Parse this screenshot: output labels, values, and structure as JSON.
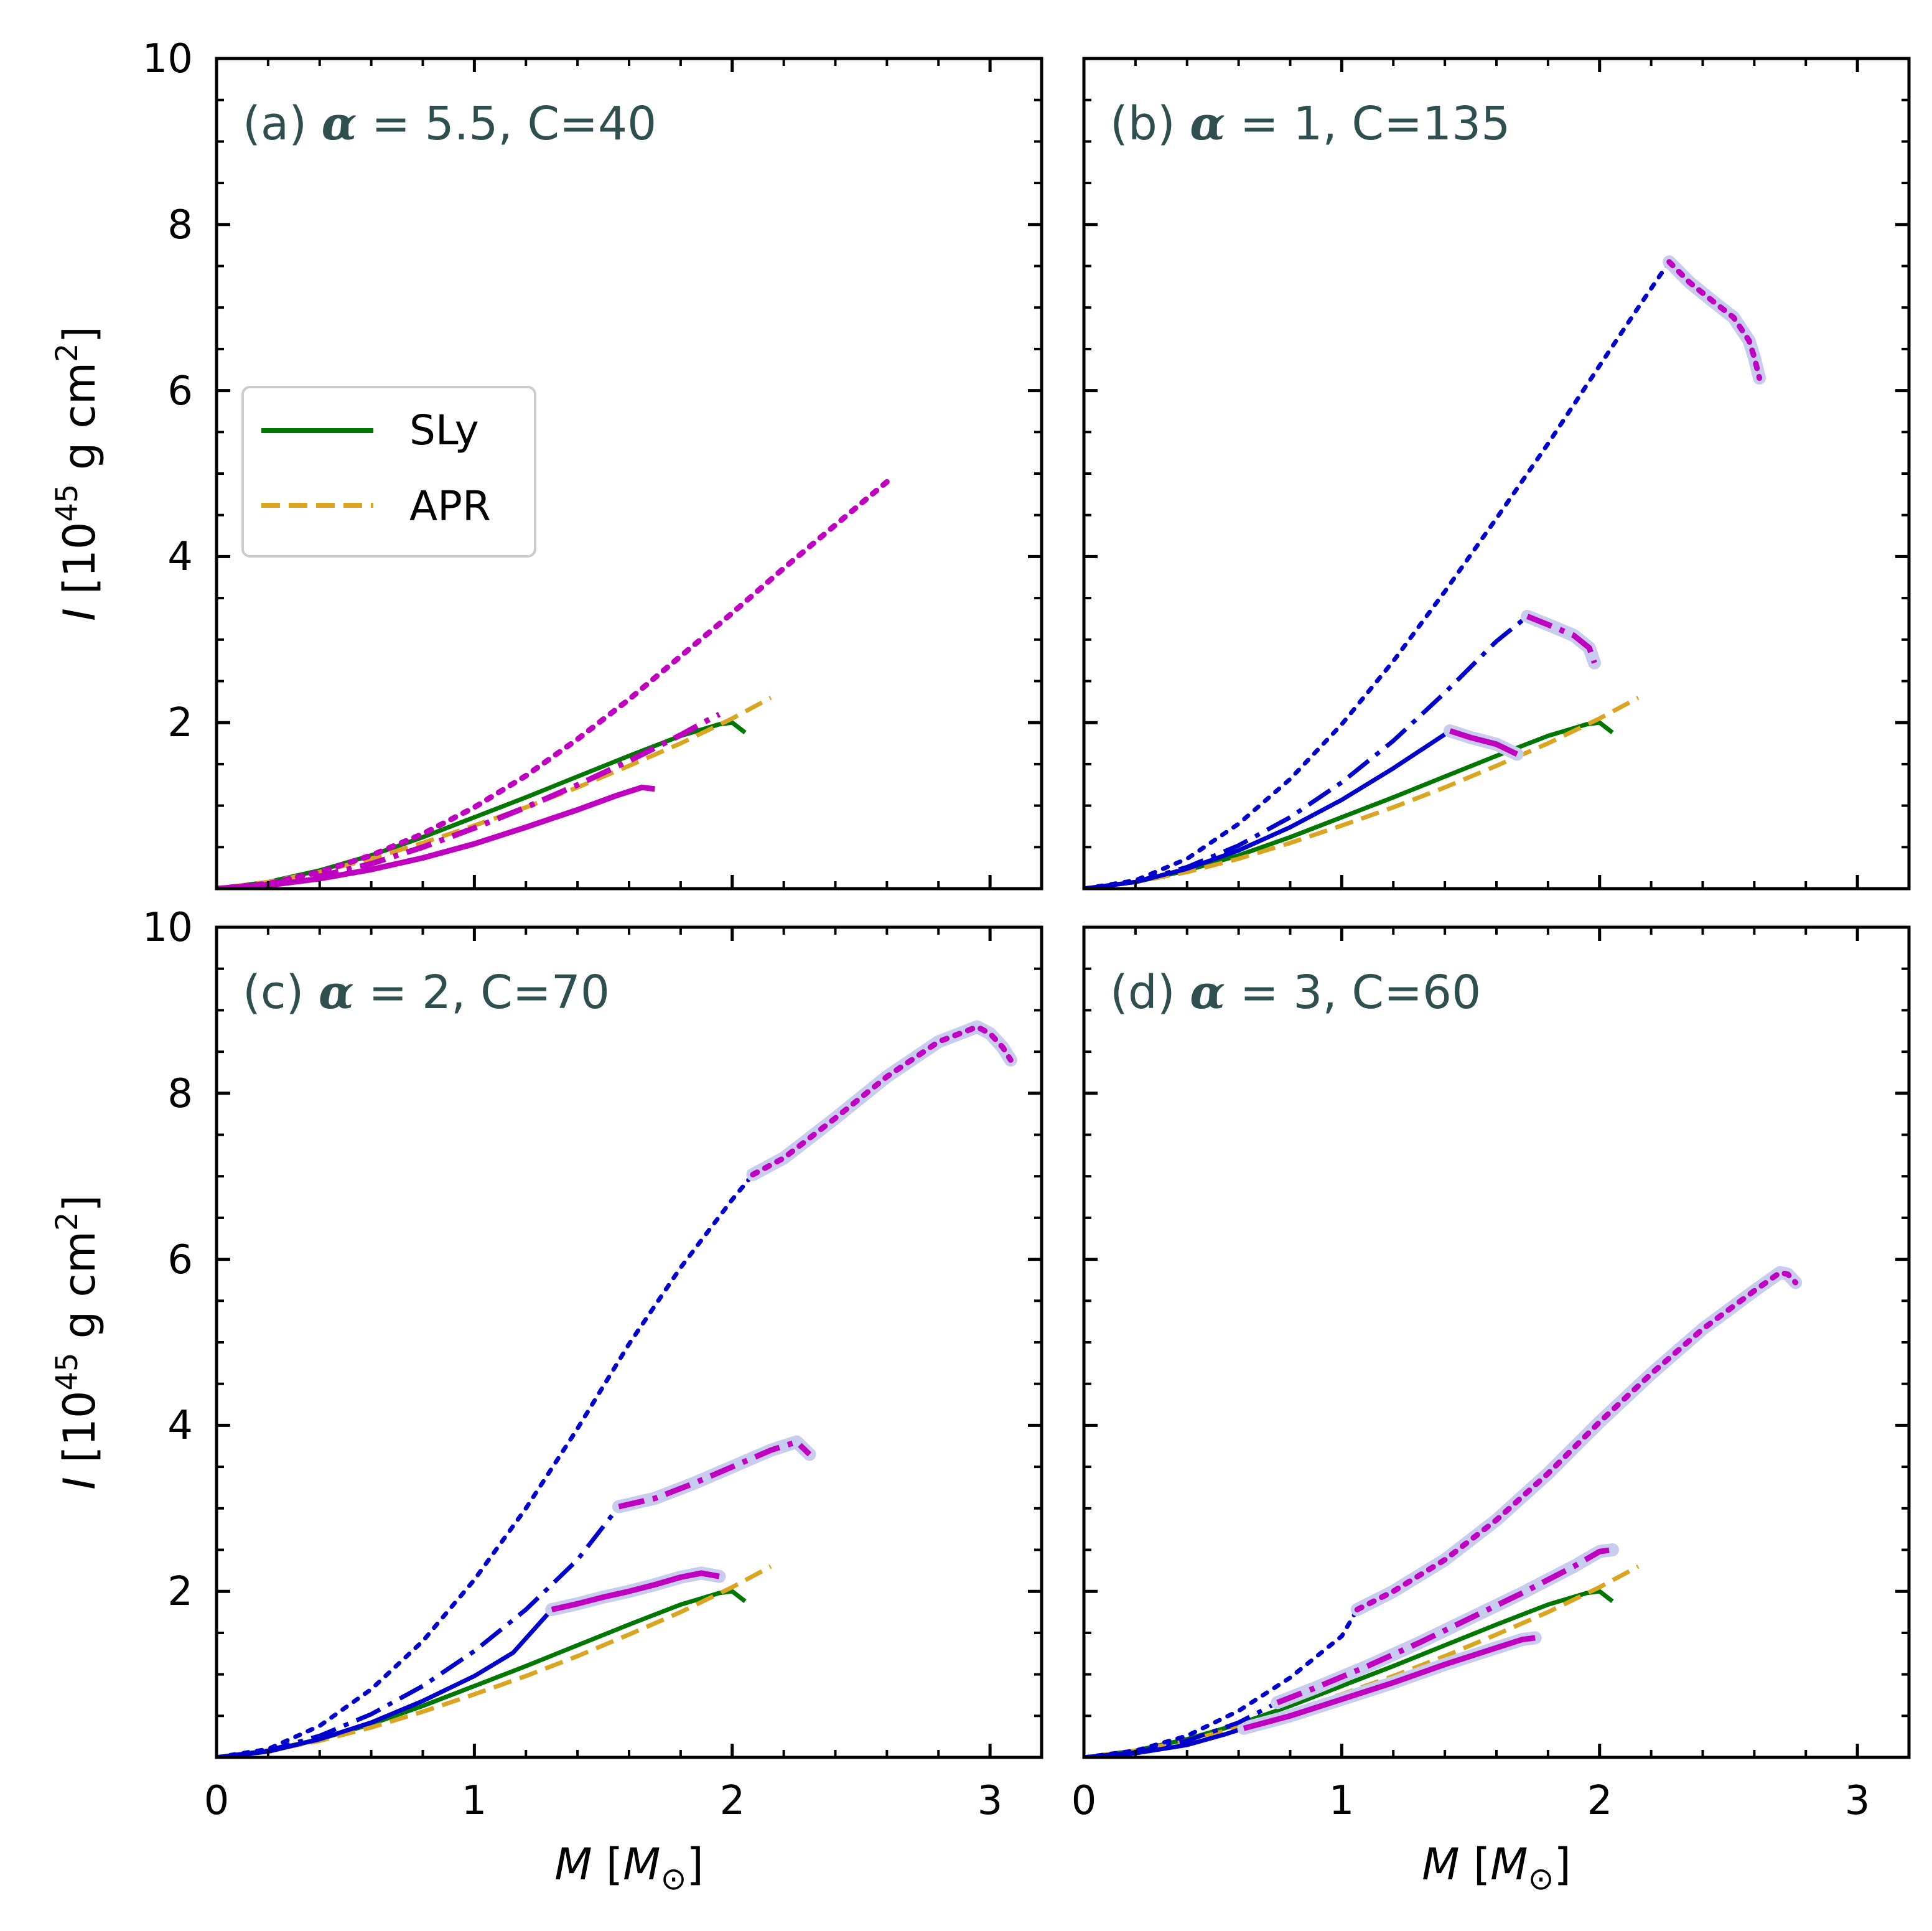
{
  "colors": {
    "SLy": "#007700",
    "APR": "#daa520",
    "hadronic": "#0000cd",
    "hybrid": "#c000c0",
    "halo": "#c8cdf0",
    "title": "#2f4f4f"
  },
  "legend": [
    {
      "label": "SLy",
      "style": "solid",
      "color": "#007700"
    },
    {
      "label": "APR",
      "style": "dashed",
      "color": "#daa520"
    }
  ],
  "chart_data": [
    {
      "id": "a",
      "type": "line",
      "title": {
        "prefix": "(a) ",
        "greek": "α",
        "suffix": " = 5.5, C=40"
      },
      "xlabel": "M",
      "xunit": "M",
      "xunit_sub": "⊙",
      "ylabel": "I",
      "yunit": "10",
      "yunit_exp": "45",
      "yunit_rest": " g cm",
      "yunit_exp2": "2",
      "xlim": [
        0,
        3.2
      ],
      "ylim": [
        0,
        10
      ],
      "xticks": [
        0,
        1,
        2,
        3
      ],
      "yticks": [
        2,
        4,
        6,
        8,
        10
      ],
      "series": [
        {
          "name": "SLy",
          "color": "SLy",
          "style": "solid",
          "width": 7,
          "x": [
            0.05,
            0.2,
            0.4,
            0.6,
            0.8,
            1.0,
            1.2,
            1.4,
            1.6,
            1.8,
            1.95,
            2.0,
            2.05
          ],
          "y": [
            0.02,
            0.08,
            0.22,
            0.4,
            0.62,
            0.86,
            1.1,
            1.35,
            1.6,
            1.84,
            1.98,
            2.0,
            1.88
          ]
        },
        {
          "name": "APR",
          "color": "APR",
          "style": "dashed",
          "width": 7,
          "x": [
            0.05,
            0.2,
            0.4,
            0.6,
            0.8,
            1.0,
            1.2,
            1.4,
            1.6,
            1.8,
            2.0,
            2.15
          ],
          "y": [
            0.02,
            0.08,
            0.2,
            0.36,
            0.55,
            0.76,
            0.98,
            1.22,
            1.48,
            1.75,
            2.05,
            2.3
          ]
        },
        {
          "name": "hybrid-solid",
          "color": "hybrid",
          "style": "solid",
          "width": 9,
          "x": [
            0,
            0.2,
            0.4,
            0.6,
            0.8,
            1.0,
            1.2,
            1.4,
            1.55,
            1.65,
            1.7
          ],
          "y": [
            0,
            0.04,
            0.12,
            0.23,
            0.37,
            0.54,
            0.74,
            0.95,
            1.12,
            1.22,
            1.2
          ]
        },
        {
          "name": "hybrid-dashdot",
          "color": "hybrid",
          "style": "dashdot",
          "width": 9,
          "x": [
            0,
            0.2,
            0.4,
            0.6,
            0.8,
            1.0,
            1.2,
            1.4,
            1.6,
            1.8,
            1.9,
            1.95
          ],
          "y": [
            0,
            0.05,
            0.15,
            0.3,
            0.5,
            0.73,
            0.98,
            1.25,
            1.54,
            1.85,
            2.02,
            2.1
          ]
        },
        {
          "name": "hybrid-dotted",
          "color": "hybrid",
          "style": "dotted",
          "width": 9,
          "x": [
            0,
            0.2,
            0.4,
            0.6,
            0.8,
            1.0,
            1.2,
            1.4,
            1.6,
            1.8,
            2.0,
            2.2,
            2.4,
            2.6
          ],
          "y": [
            0,
            0.06,
            0.2,
            0.4,
            0.66,
            0.98,
            1.36,
            1.8,
            2.28,
            2.8,
            3.32,
            3.86,
            4.38,
            4.9
          ]
        }
      ]
    },
    {
      "id": "b",
      "type": "line",
      "title": {
        "prefix": "(b) ",
        "greek": "α",
        "suffix": " = 1, C=135"
      },
      "xlabel": "M",
      "xunit": "M",
      "xunit_sub": "⊙",
      "ylabel": "I",
      "yunit": "10",
      "yunit_exp": "45",
      "yunit_rest": " g cm",
      "yunit_exp2": "2",
      "xlim": [
        0,
        3.2
      ],
      "ylim": [
        0,
        10
      ],
      "xticks": [
        0,
        1,
        2,
        3
      ],
      "yticks": [
        2,
        4,
        6,
        8,
        10
      ],
      "series": [
        {
          "name": "SLy",
          "color": "SLy",
          "style": "solid",
          "width": 7,
          "x": [
            0.05,
            0.2,
            0.4,
            0.6,
            0.8,
            1.0,
            1.2,
            1.4,
            1.6,
            1.8,
            1.95,
            2.0,
            2.05
          ],
          "y": [
            0.02,
            0.08,
            0.22,
            0.4,
            0.62,
            0.86,
            1.1,
            1.35,
            1.6,
            1.84,
            1.98,
            2.0,
            1.88
          ]
        },
        {
          "name": "APR",
          "color": "APR",
          "style": "dashed",
          "width": 7,
          "x": [
            0.05,
            0.2,
            0.4,
            0.6,
            0.8,
            1.0,
            1.2,
            1.4,
            1.6,
            1.8,
            2.0,
            2.15
          ],
          "y": [
            0.02,
            0.08,
            0.2,
            0.36,
            0.55,
            0.76,
            0.98,
            1.22,
            1.48,
            1.75,
            2.05,
            2.3
          ]
        },
        {
          "name": "hadronic-solid",
          "color": "hadronic",
          "style": "solid",
          "width": 7,
          "x": [
            0,
            0.2,
            0.4,
            0.6,
            0.8,
            1.0,
            1.2,
            1.42
          ],
          "y": [
            0,
            0.08,
            0.24,
            0.46,
            0.74,
            1.07,
            1.45,
            1.9
          ]
        },
        {
          "name": "hybrid-solid",
          "color": "hybrid",
          "style": "solid",
          "width": 9,
          "halo": true,
          "x": [
            1.42,
            1.5,
            1.6,
            1.68
          ],
          "y": [
            1.9,
            1.82,
            1.74,
            1.62
          ]
        },
        {
          "name": "hadronic-dashdot",
          "color": "hadronic",
          "style": "dashdot",
          "width": 7,
          "x": [
            0,
            0.2,
            0.4,
            0.6,
            0.8,
            1.0,
            1.2,
            1.4,
            1.6,
            1.72
          ],
          "y": [
            0,
            0.08,
            0.26,
            0.52,
            0.86,
            1.28,
            1.78,
            2.36,
            2.98,
            3.28
          ]
        },
        {
          "name": "hybrid-dashdot",
          "color": "hybrid",
          "style": "dashdot",
          "width": 9,
          "halo": true,
          "x": [
            1.72,
            1.8,
            1.9,
            1.96,
            1.98
          ],
          "y": [
            3.28,
            3.18,
            3.05,
            2.9,
            2.72
          ]
        },
        {
          "name": "hadronic-dotted",
          "color": "hadronic",
          "style": "dotted",
          "width": 7,
          "x": [
            0,
            0.2,
            0.4,
            0.6,
            0.8,
            1.0,
            1.2,
            1.4,
            1.6,
            1.8,
            2.0,
            2.15,
            2.27
          ],
          "y": [
            0,
            0.1,
            0.36,
            0.78,
            1.32,
            1.98,
            2.74,
            3.58,
            4.46,
            5.36,
            6.3,
            7.0,
            7.55
          ]
        },
        {
          "name": "hybrid-dotted",
          "color": "hybrid",
          "style": "dotted",
          "width": 9,
          "halo": true,
          "x": [
            2.27,
            2.35,
            2.45,
            2.52,
            2.58,
            2.6,
            2.62
          ],
          "y": [
            7.55,
            7.3,
            7.05,
            6.88,
            6.6,
            6.4,
            6.15
          ]
        }
      ]
    },
    {
      "id": "c",
      "type": "line",
      "title": {
        "prefix": "(c) ",
        "greek": "α",
        "suffix": " = 2, C=70"
      },
      "xlabel": "M",
      "xunit": "M",
      "xunit_sub": "⊙",
      "ylabel": "I",
      "yunit": "10",
      "yunit_exp": "45",
      "yunit_rest": " g cm",
      "yunit_exp2": "2",
      "xlim": [
        0,
        3.2
      ],
      "ylim": [
        0,
        10
      ],
      "xticks": [
        0,
        1,
        2,
        3
      ],
      "yticks": [
        2,
        4,
        6,
        8,
        10
      ],
      "series": [
        {
          "name": "SLy",
          "color": "SLy",
          "style": "solid",
          "width": 7,
          "x": [
            0.05,
            0.2,
            0.4,
            0.6,
            0.8,
            1.0,
            1.2,
            1.4,
            1.6,
            1.8,
            1.95,
            2.0,
            2.05
          ],
          "y": [
            0.02,
            0.08,
            0.22,
            0.4,
            0.62,
            0.86,
            1.1,
            1.35,
            1.6,
            1.84,
            1.98,
            2.0,
            1.88
          ]
        },
        {
          "name": "APR",
          "color": "APR",
          "style": "dashed",
          "width": 7,
          "x": [
            0.05,
            0.2,
            0.4,
            0.6,
            0.8,
            1.0,
            1.2,
            1.4,
            1.6,
            1.8,
            2.0,
            2.15
          ],
          "y": [
            0.02,
            0.08,
            0.2,
            0.36,
            0.55,
            0.76,
            0.98,
            1.22,
            1.48,
            1.75,
            2.05,
            2.3
          ]
        },
        {
          "name": "hadronic-solid",
          "color": "hadronic",
          "style": "solid",
          "width": 7,
          "x": [
            0,
            0.2,
            0.4,
            0.6,
            0.8,
            1.0,
            1.15,
            1.3
          ],
          "y": [
            0,
            0.07,
            0.22,
            0.42,
            0.68,
            0.98,
            1.26,
            1.78
          ]
        },
        {
          "name": "hybrid-solid",
          "color": "hybrid",
          "style": "solid",
          "width": 9,
          "halo": true,
          "x": [
            1.3,
            1.4,
            1.5,
            1.6,
            1.7,
            1.8,
            1.88,
            1.95
          ],
          "y": [
            1.78,
            1.85,
            1.93,
            2.0,
            2.08,
            2.17,
            2.22,
            2.18
          ]
        },
        {
          "name": "hadronic-dashdot",
          "color": "hadronic",
          "style": "dashdot",
          "width": 7,
          "x": [
            0,
            0.2,
            0.4,
            0.6,
            0.8,
            1.0,
            1.2,
            1.4,
            1.56
          ],
          "y": [
            0,
            0.08,
            0.26,
            0.52,
            0.86,
            1.28,
            1.78,
            2.38,
            3.02
          ]
        },
        {
          "name": "hybrid-dashdot",
          "color": "hybrid",
          "style": "dashdot",
          "width": 9,
          "halo": true,
          "x": [
            1.56,
            1.7,
            1.85,
            2.0,
            2.15,
            2.25,
            2.3
          ],
          "y": [
            3.02,
            3.12,
            3.3,
            3.5,
            3.7,
            3.8,
            3.65
          ]
        },
        {
          "name": "hadronic-dotted",
          "color": "hadronic",
          "style": "dotted",
          "width": 7,
          "x": [
            0,
            0.2,
            0.4,
            0.6,
            0.8,
            1.0,
            1.2,
            1.4,
            1.6,
            1.8,
            2.0,
            2.08
          ],
          "y": [
            0,
            0.1,
            0.38,
            0.82,
            1.4,
            2.14,
            3.0,
            3.96,
            4.98,
            5.9,
            6.72,
            7.02
          ]
        },
        {
          "name": "hybrid-dotted",
          "color": "hybrid",
          "style": "dotted",
          "width": 9,
          "halo": true,
          "x": [
            2.08,
            2.2,
            2.4,
            2.6,
            2.8,
            2.95,
            3.0,
            3.05,
            3.08
          ],
          "y": [
            7.02,
            7.22,
            7.7,
            8.2,
            8.62,
            8.8,
            8.72,
            8.55,
            8.4
          ]
        }
      ]
    },
    {
      "id": "d",
      "type": "line",
      "title": {
        "prefix": "(d) ",
        "greek": "α",
        "suffix": " = 3, C=60"
      },
      "xlabel": "M",
      "xunit": "M",
      "xunit_sub": "⊙",
      "ylabel": "I",
      "yunit": "10",
      "yunit_exp": "45",
      "yunit_rest": " g cm",
      "yunit_exp2": "2",
      "xlim": [
        0,
        3.2
      ],
      "ylim": [
        0,
        10
      ],
      "xticks": [
        0,
        1,
        2,
        3
      ],
      "yticks": [
        2,
        4,
        6,
        8,
        10
      ],
      "series": [
        {
          "name": "SLy",
          "color": "SLy",
          "style": "solid",
          "width": 7,
          "x": [
            0.05,
            0.2,
            0.4,
            0.6,
            0.8,
            1.0,
            1.2,
            1.4,
            1.6,
            1.8,
            1.95,
            2.0,
            2.05
          ],
          "y": [
            0.02,
            0.08,
            0.22,
            0.4,
            0.62,
            0.86,
            1.1,
            1.35,
            1.6,
            1.84,
            1.98,
            2.0,
            1.88
          ]
        },
        {
          "name": "APR",
          "color": "APR",
          "style": "dashed",
          "width": 7,
          "x": [
            0.05,
            0.2,
            0.4,
            0.6,
            0.8,
            1.0,
            1.2,
            1.4,
            1.6,
            1.8,
            2.0,
            2.15
          ],
          "y": [
            0.02,
            0.08,
            0.2,
            0.36,
            0.55,
            0.76,
            0.98,
            1.22,
            1.48,
            1.75,
            2.05,
            2.3
          ]
        },
        {
          "name": "hadronic-solid",
          "color": "hadronic",
          "style": "solid",
          "width": 7,
          "x": [
            0,
            0.2,
            0.4,
            0.55,
            0.62
          ],
          "y": [
            0,
            0.05,
            0.15,
            0.28,
            0.35
          ]
        },
        {
          "name": "hybrid-solid",
          "color": "hybrid",
          "style": "solid",
          "width": 9,
          "halo": true,
          "x": [
            0.62,
            0.8,
            1.0,
            1.2,
            1.4,
            1.6,
            1.7,
            1.75
          ],
          "y": [
            0.35,
            0.5,
            0.7,
            0.9,
            1.12,
            1.32,
            1.42,
            1.44
          ]
        },
        {
          "name": "hadronic-dashdot",
          "color": "hadronic",
          "style": "dashdot",
          "width": 7,
          "x": [
            0,
            0.2,
            0.4,
            0.6,
            0.75
          ],
          "y": [
            0,
            0.06,
            0.2,
            0.42,
            0.66
          ]
        },
        {
          "name": "hybrid-dashdot",
          "color": "hybrid",
          "style": "dashdot",
          "width": 9,
          "halo": true,
          "x": [
            0.75,
            0.9,
            1.1,
            1.3,
            1.5,
            1.7,
            1.9,
            2.0,
            2.05
          ],
          "y": [
            0.66,
            0.84,
            1.1,
            1.38,
            1.68,
            1.98,
            2.3,
            2.48,
            2.5
          ]
        },
        {
          "name": "hadronic-dotted",
          "color": "hadronic",
          "style": "dotted",
          "width": 7,
          "x": [
            0,
            0.2,
            0.4,
            0.6,
            0.8,
            1.0,
            1.06
          ],
          "y": [
            0,
            0.08,
            0.26,
            0.56,
            0.96,
            1.46,
            1.78
          ]
        },
        {
          "name": "hybrid-dotted",
          "color": "hybrid",
          "style": "dotted",
          "width": 9,
          "halo": true,
          "x": [
            1.06,
            1.2,
            1.4,
            1.6,
            1.8,
            2.0,
            2.2,
            2.4,
            2.6,
            2.7,
            2.73,
            2.76
          ],
          "y": [
            1.78,
            2.0,
            2.38,
            2.86,
            3.42,
            4.04,
            4.62,
            5.16,
            5.62,
            5.84,
            5.82,
            5.72
          ]
        }
      ]
    }
  ]
}
